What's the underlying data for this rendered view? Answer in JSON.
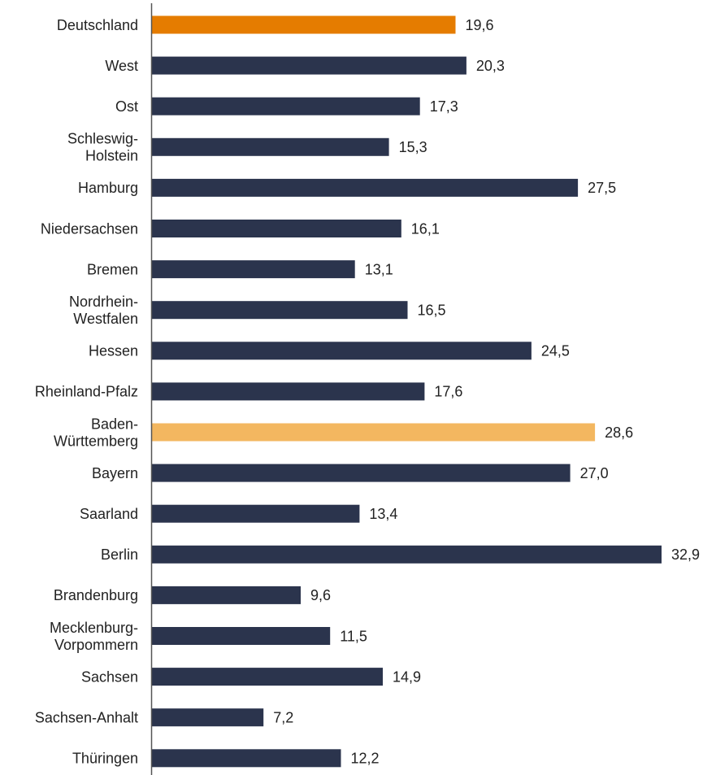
{
  "chart_data": {
    "type": "bar",
    "orientation": "horizontal",
    "categories": [
      [
        "Deutschland"
      ],
      [
        "West"
      ],
      [
        "Ost"
      ],
      [
        "Schleswig-",
        "Holstein"
      ],
      [
        "Hamburg"
      ],
      [
        "Niedersachsen"
      ],
      [
        "Bremen"
      ],
      [
        "Nordrhein-",
        "Westfalen"
      ],
      [
        "Hessen"
      ],
      [
        "Rheinland-Pfalz"
      ],
      [
        "Baden-",
        "Württemberg"
      ],
      [
        "Bayern"
      ],
      [
        "Saarland"
      ],
      [
        "Berlin"
      ],
      [
        "Brandenburg"
      ],
      [
        "Mecklenburg-",
        "Vorpommern"
      ],
      [
        "Sachsen"
      ],
      [
        "Sachsen-Anhalt"
      ],
      [
        "Thüringen"
      ]
    ],
    "values": [
      19.6,
      20.3,
      17.3,
      15.3,
      27.5,
      16.1,
      13.1,
      16.5,
      24.5,
      17.6,
      28.6,
      27.0,
      13.4,
      32.9,
      9.6,
      11.5,
      14.9,
      7.2,
      12.2
    ],
    "value_labels": [
      "19,6",
      "20,3",
      "17,3",
      "15,3",
      "27,5",
      "16,1",
      "13,1",
      "16,5",
      "24,5",
      "17,6",
      "28,6",
      "27,0",
      "13,4",
      "32,9",
      "9,6",
      "11,5",
      "14,9",
      "7,2",
      "12,2"
    ],
    "bar_colors": [
      "#e57c00",
      "#2b344d",
      "#2b344d",
      "#2b344d",
      "#2b344d",
      "#2b344d",
      "#2b344d",
      "#2b344d",
      "#2b344d",
      "#2b344d",
      "#f3b760",
      "#2b344d",
      "#2b344d",
      "#2b344d",
      "#2b344d",
      "#2b344d",
      "#2b344d",
      "#2b344d",
      "#2b344d"
    ],
    "xlim": [
      0,
      32.9
    ],
    "title": "",
    "xlabel": "",
    "ylabel": "",
    "grid": false,
    "legend": "none",
    "axis_color": "#555555"
  }
}
